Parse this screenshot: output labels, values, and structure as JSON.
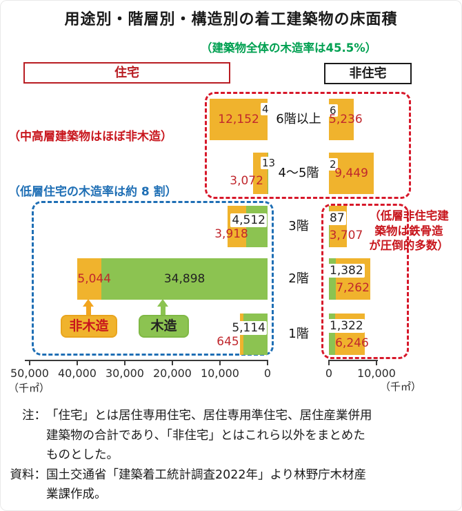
{
  "title": "用途別・階層別・構造別の着工建築物の床面積",
  "subtitle": "（建築物全体の木造率は45.5%）",
  "groups": {
    "residential": "住宅",
    "non_residential": "非住宅"
  },
  "annotations": {
    "mid_high_rise": "（中高層建築物はほぼ非木造）",
    "low_rise_residential": "（低層住宅の木造率は約 8 割）",
    "low_rise_non_residential": "（低層非住宅建\n築物は鉄骨造\nが圧倒的多数）"
  },
  "legend": {
    "non_wood": "非木造",
    "wood": "木造"
  },
  "axis": {
    "left_tick_labels": [
      "50,000",
      "40,000",
      "30,000",
      "20,000",
      "10,000",
      "0"
    ],
    "right_tick_labels": [
      "0",
      "10,000"
    ],
    "unit_label": "（千㎡）"
  },
  "notes": [
    {
      "label": "注：",
      "text": "「住宅」とは居住専用住宅、居住専用準住宅、居住産業併用\n建築物の合計であり、「非住宅」とはこれら以外をまとめた\nものとした。"
    },
    {
      "label": "資料：",
      "text": "国土交通省「建築着工統計調査2022年」より林野庁木材産\n業課作成。"
    }
  ],
  "colors": {
    "wood": "#8CC351",
    "non_wood": "#F0B32D",
    "red_dashed": "#D7182A",
    "blue_dashed": "#1F6FB5",
    "green_text": "#00A051",
    "value_red": "#C0272D",
    "value_dark": "#222222"
  },
  "chart_data": {
    "type": "bar",
    "orientation": "horizontal",
    "unit": "千㎡",
    "title": "用途別・階層別・構造別の着工建築物の床面積",
    "overall_wood_rate_percent": 45.5,
    "categories": [
      "6階以上",
      "4～5階",
      "3階",
      "2階",
      "1階"
    ],
    "series": [
      {
        "name": "住宅 非木造",
        "values": [
          12152,
          3072,
          3918,
          5044,
          645
        ]
      },
      {
        "name": "住宅 木造",
        "values": [
          4,
          13,
          4512,
          34898,
          5114
        ]
      },
      {
        "name": "非住宅 木造",
        "values": [
          6,
          2,
          87,
          1382,
          1322
        ]
      },
      {
        "name": "非住宅 非木造",
        "values": [
          5236,
          9449,
          3707,
          7262,
          6246
        ]
      }
    ],
    "left_axis": {
      "title": "住宅",
      "max": 50000,
      "ticks": [
        50000,
        40000,
        30000,
        20000,
        10000,
        0
      ],
      "direction": "right-to-left"
    },
    "right_axis": {
      "title": "非住宅",
      "max": 10000,
      "ticks": [
        0,
        10000
      ],
      "direction": "left-to-right"
    },
    "legend_position": "inside-lower-left",
    "grid": false
  }
}
